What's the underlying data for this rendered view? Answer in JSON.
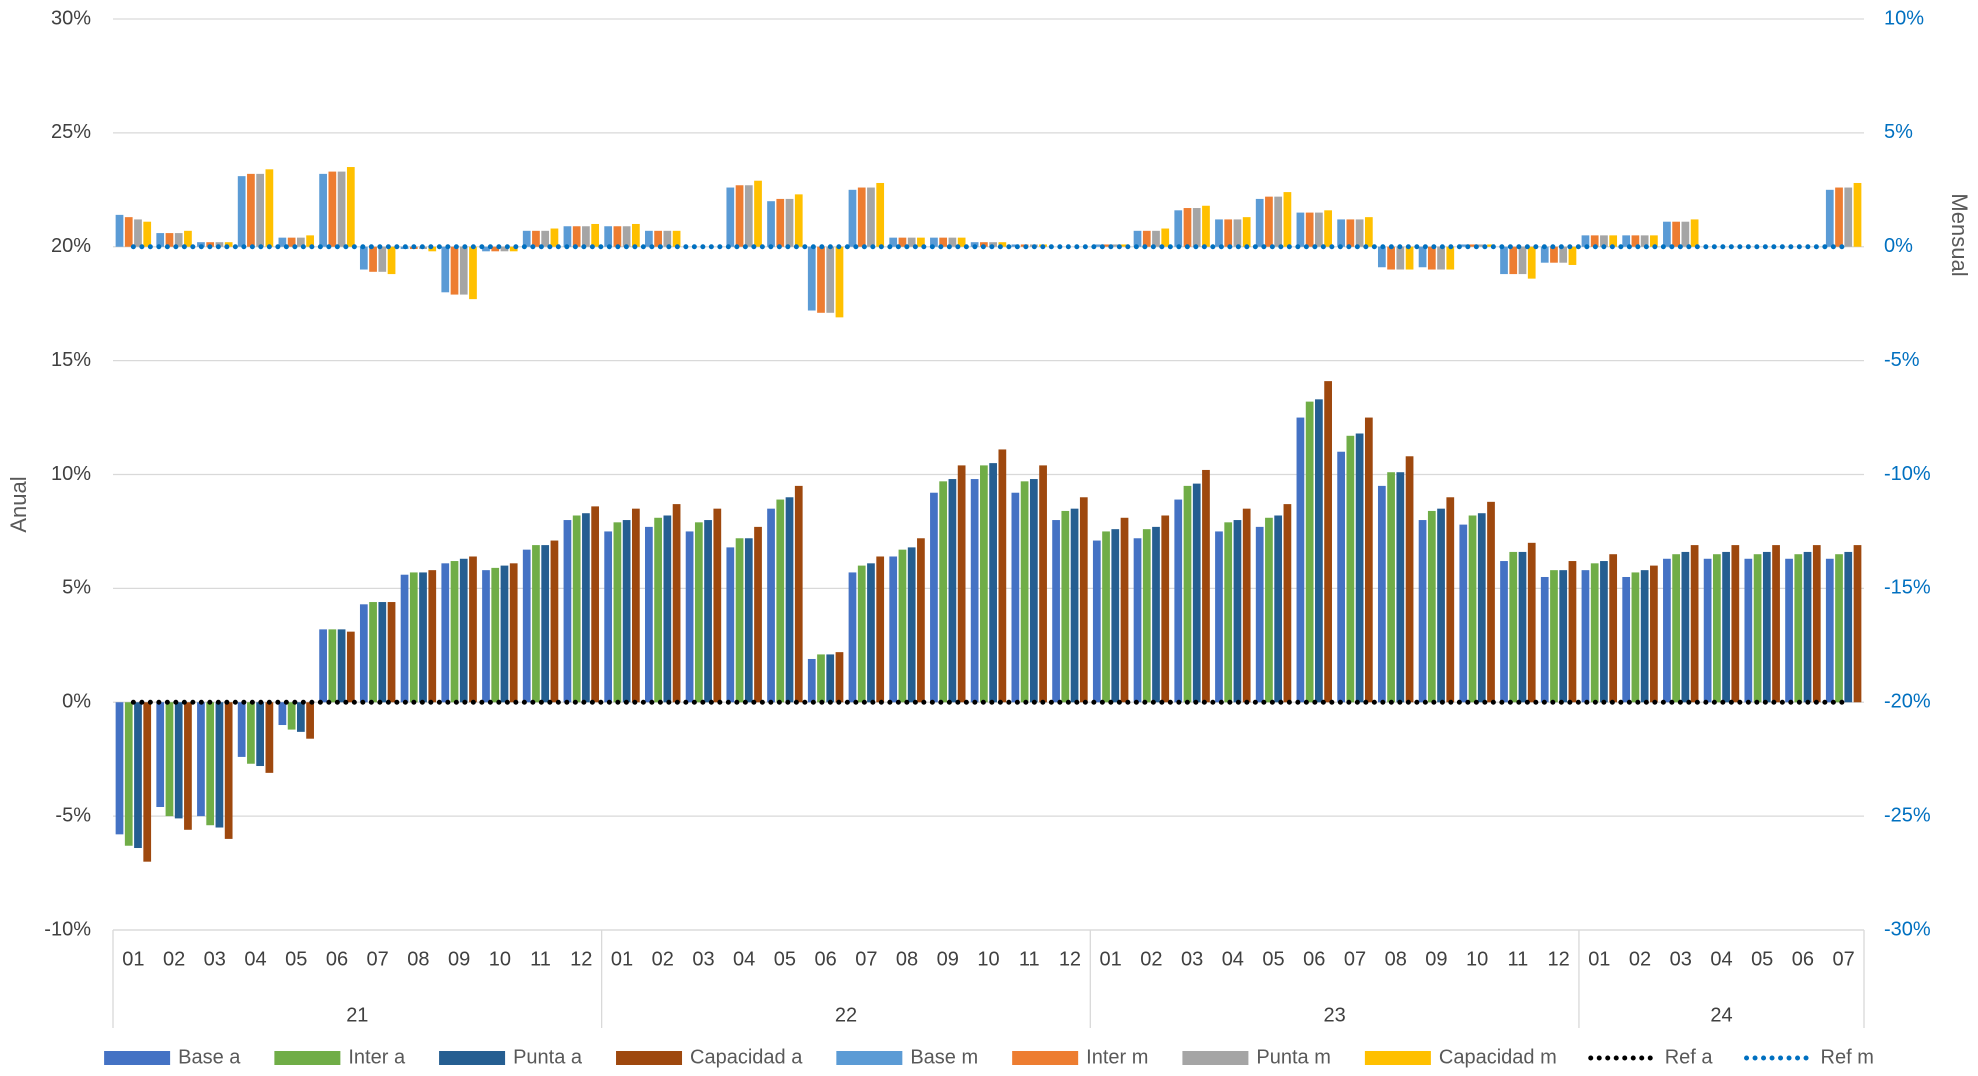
{
  "chart_data": {
    "type": "bar",
    "categories": [
      "01",
      "02",
      "03",
      "04",
      "05",
      "06",
      "07",
      "08",
      "09",
      "10",
      "11",
      "12",
      "01",
      "02",
      "03",
      "04",
      "05",
      "06",
      "07",
      "08",
      "09",
      "10",
      "11",
      "12",
      "01",
      "02",
      "03",
      "04",
      "05",
      "06",
      "07",
      "08",
      "09",
      "10",
      "11",
      "12",
      "01",
      "02",
      "03",
      "04",
      "05",
      "06",
      "07"
    ],
    "x_groups": [
      "21",
      "21",
      "21",
      "21",
      "21",
      "21",
      "21",
      "21",
      "21",
      "21",
      "21",
      "21",
      "22",
      "22",
      "22",
      "22",
      "22",
      "22",
      "22",
      "22",
      "22",
      "22",
      "22",
      "22",
      "23",
      "23",
      "23",
      "23",
      "23",
      "23",
      "23",
      "23",
      "23",
      "23",
      "23",
      "23",
      "24",
      "24",
      "24",
      "24",
      "24",
      "24",
      "24"
    ],
    "y_label": "Anual",
    "y2_label": "Mensual",
    "ylim": [
      -10,
      30
    ],
    "yticks": [
      {
        "value": -10,
        "label": "-10%"
      },
      {
        "value": -5,
        "label": "-5%"
      },
      {
        "value": 0,
        "label": "0%"
      },
      {
        "value": 5,
        "label": "5%"
      },
      {
        "value": 10,
        "label": "10%"
      },
      {
        "value": 15,
        "label": "15%"
      },
      {
        "value": 20,
        "label": "20%"
      },
      {
        "value": 25,
        "label": "25%"
      },
      {
        "value": 30,
        "label": "30%"
      }
    ],
    "y2lim": [
      -30,
      10
    ],
    "y2ticks": [
      {
        "value": -30,
        "label": "-30%"
      },
      {
        "value": -25,
        "label": "-25%"
      },
      {
        "value": -20,
        "label": "-20%"
      },
      {
        "value": -15,
        "label": "-15%"
      },
      {
        "value": -10,
        "label": "-10%"
      },
      {
        "value": -5,
        "label": "-5%"
      },
      {
        "value": 0,
        "label": "0%"
      },
      {
        "value": 5,
        "label": "5%"
      },
      {
        "value": 10,
        "label": "10%"
      }
    ],
    "grid": true,
    "legend": "bottom",
    "series": [
      {
        "name": "Base a",
        "color": "#4472c4",
        "type": "bar",
        "values": [
          -5.8,
          -4.6,
          -5.0,
          -2.4,
          -1.0,
          3.2,
          4.3,
          5.6,
          6.1,
          5.8,
          6.7,
          8.0,
          7.5,
          7.7,
          7.5,
          6.8,
          8.5,
          1.9,
          5.7,
          6.4,
          9.2,
          9.8,
          9.2,
          8.0,
          7.1,
          7.2,
          8.9,
          7.5,
          7.7,
          12.5,
          11.0,
          9.5,
          8.0,
          7.8,
          6.2,
          5.5,
          5.8,
          5.5,
          6.3,
          6.3,
          6.3,
          6.3,
          6.3
        ]
      },
      {
        "name": "Inter a",
        "color": "#70ad47",
        "type": "bar",
        "values": [
          -6.3,
          -5.0,
          -5.4,
          -2.7,
          -1.2,
          3.2,
          4.4,
          5.7,
          6.2,
          5.9,
          6.9,
          8.2,
          7.9,
          8.1,
          7.9,
          7.2,
          8.9,
          2.1,
          6.0,
          6.7,
          9.7,
          10.4,
          9.7,
          8.4,
          7.5,
          7.6,
          9.5,
          7.9,
          8.1,
          13.2,
          11.7,
          10.1,
          8.4,
          8.2,
          6.6,
          5.8,
          6.1,
          5.7,
          6.5,
          6.5,
          6.5,
          6.5,
          6.5
        ]
      },
      {
        "name": "Punta a",
        "color": "#255e91",
        "type": "bar",
        "values": [
          -6.4,
          -5.1,
          -5.5,
          -2.8,
          -1.3,
          3.2,
          4.4,
          5.7,
          6.3,
          6.0,
          6.9,
          8.3,
          8.0,
          8.2,
          8.0,
          7.2,
          9.0,
          2.1,
          6.1,
          6.8,
          9.8,
          10.5,
          9.8,
          8.5,
          7.6,
          7.7,
          9.6,
          8.0,
          8.2,
          13.3,
          11.8,
          10.1,
          8.5,
          8.3,
          6.6,
          5.8,
          6.2,
          5.8,
          6.6,
          6.6,
          6.6,
          6.6,
          6.6
        ]
      },
      {
        "name": "Capacidad a",
        "color": "#9e480e",
        "type": "bar",
        "values": [
          -7.0,
          -5.6,
          -6.0,
          -3.1,
          -1.6,
          3.1,
          4.4,
          5.8,
          6.4,
          6.1,
          7.1,
          8.6,
          8.5,
          8.7,
          8.5,
          7.7,
          9.5,
          2.2,
          6.4,
          7.2,
          10.4,
          11.1,
          10.4,
          9.0,
          8.1,
          8.2,
          10.2,
          8.5,
          8.7,
          14.1,
          12.5,
          10.8,
          9.0,
          8.8,
          7.0,
          6.2,
          6.5,
          6.0,
          6.9,
          6.9,
          6.9,
          6.9,
          6.9
        ]
      },
      {
        "name": "Base m",
        "color": "#5b9bd5",
        "type": "bar",
        "axis": "y2",
        "values": [
          1.4,
          0.6,
          0.2,
          3.1,
          0.4,
          3.2,
          -1.0,
          -0.1,
          -2.0,
          -0.2,
          0.7,
          0.9,
          0.9,
          0.7,
          0,
          2.6,
          2.0,
          -2.8,
          2.5,
          0.4,
          0.4,
          0.2,
          0.1,
          0,
          0.1,
          0.7,
          1.6,
          1.2,
          2.1,
          1.5,
          1.2,
          -0.9,
          -0.9,
          0.1,
          -1.2,
          -0.7,
          0.5,
          0.5,
          1.1,
          0,
          0,
          0,
          2.5
        ]
      },
      {
        "name": "Inter m",
        "color": "#ed7d31",
        "type": "bar",
        "axis": "y2",
        "values": [
          1.3,
          0.6,
          0.2,
          3.2,
          0.4,
          3.3,
          -1.1,
          -0.1,
          -2.1,
          -0.2,
          0.7,
          0.9,
          0.9,
          0.7,
          0,
          2.7,
          2.1,
          -2.9,
          2.6,
          0.4,
          0.4,
          0.2,
          0.1,
          0,
          0.1,
          0.7,
          1.7,
          1.2,
          2.2,
          1.5,
          1.2,
          -1.0,
          -1.0,
          0.1,
          -1.2,
          -0.7,
          0.5,
          0.5,
          1.1,
          0,
          0,
          0,
          2.6
        ]
      },
      {
        "name": "Punta m",
        "color": "#a5a5a5",
        "type": "bar",
        "axis": "y2",
        "values": [
          1.2,
          0.6,
          0.2,
          3.2,
          0.4,
          3.3,
          -1.1,
          -0.1,
          -2.1,
          -0.2,
          0.7,
          0.9,
          0.9,
          0.7,
          0,
          2.7,
          2.1,
          -2.9,
          2.6,
          0.4,
          0.4,
          0.2,
          0.1,
          0,
          0.1,
          0.7,
          1.7,
          1.2,
          2.2,
          1.5,
          1.2,
          -1.0,
          -1.0,
          0.1,
          -1.2,
          -0.7,
          0.5,
          0.5,
          1.1,
          0,
          0,
          0,
          2.6
        ]
      },
      {
        "name": "Capacidad m",
        "color": "#ffc000",
        "type": "bar",
        "axis": "y2",
        "values": [
          1.1,
          0.7,
          0.2,
          3.4,
          0.5,
          3.5,
          -1.2,
          -0.2,
          -2.3,
          -0.2,
          0.8,
          1.0,
          1.0,
          0.7,
          0,
          2.9,
          2.3,
          -3.1,
          2.8,
          0.4,
          0.4,
          0.2,
          0.1,
          0,
          0.1,
          0.8,
          1.8,
          1.3,
          2.4,
          1.6,
          1.3,
          -1.0,
          -1.0,
          0.1,
          -1.4,
          -0.8,
          0.5,
          0.5,
          1.2,
          0,
          0,
          0,
          2.8
        ]
      },
      {
        "name": "Ref a",
        "color": "#000000",
        "type": "line",
        "line_style": "dotted",
        "values": [
          0,
          0,
          0,
          0,
          0,
          0,
          0,
          0,
          0,
          0,
          0,
          0,
          0,
          0,
          0,
          0,
          0,
          0,
          0,
          0,
          0,
          0,
          0,
          0,
          0,
          0,
          0,
          0,
          0,
          0,
          0,
          0,
          0,
          0,
          0,
          0,
          0,
          0,
          0,
          0,
          0,
          0,
          0
        ]
      },
      {
        "name": "Ref m",
        "color": "#0070c0",
        "type": "line",
        "line_style": "dotted",
        "axis": "y2",
        "values": [
          0,
          0,
          0,
          0,
          0,
          0,
          0,
          0,
          0,
          0,
          0,
          0,
          0,
          0,
          0,
          0,
          0,
          0,
          0,
          0,
          0,
          0,
          0,
          0,
          0,
          0,
          0,
          0,
          0,
          0,
          0,
          0,
          0,
          0,
          0,
          0,
          0,
          0,
          0,
          0,
          0,
          0,
          0
        ]
      }
    ]
  }
}
